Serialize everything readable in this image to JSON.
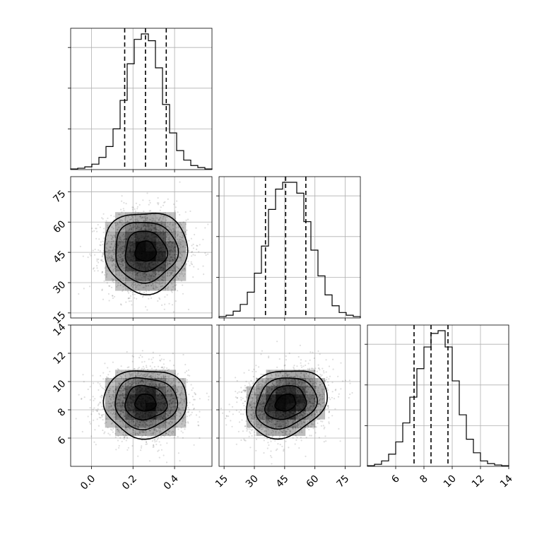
{
  "chart_data": {
    "type": "corner",
    "params": [
      {
        "range": [
          -0.1,
          0.58
        ],
        "ticks": [
          0.0,
          0.2,
          0.4
        ],
        "tick_labels": [
          "0.0",
          "0.2",
          "0.4"
        ],
        "quantiles": [
          0.16,
          0.26,
          0.36
        ],
        "hist": [
          0.5,
          1,
          2,
          4,
          9,
          17,
          30,
          51,
          78,
          96,
          100,
          95,
          75,
          48,
          27,
          14,
          7,
          3,
          1.5,
          0.5
        ]
      },
      {
        "range": [
          12.5,
          82.5
        ],
        "ticks": [
          15,
          30,
          45,
          60,
          75
        ],
        "tick_labels": [
          "15",
          "30",
          "45",
          "60",
          "75"
        ],
        "quantiles": [
          35.5,
          45.5,
          55.5
        ],
        "hist": [
          1,
          2,
          5,
          10,
          19,
          33,
          53,
          80,
          95,
          100,
          100,
          92,
          71,
          50,
          31,
          17,
          9,
          4,
          2,
          1
        ]
      },
      {
        "range": [
          4.0,
          14.0
        ],
        "ticks": [
          6,
          8,
          10,
          12,
          14
        ],
        "tick_labels": [
          "6",
          "8",
          "10",
          "12",
          "14"
        ],
        "quantiles": [
          7.3,
          8.5,
          9.7
        ],
        "hist": [
          0.5,
          1.5,
          4,
          9,
          18,
          32,
          51,
          72,
          88,
          98,
          100,
          88,
          63,
          38,
          20,
          10,
          4,
          2,
          1,
          0.5
        ]
      }
    ],
    "correlations": [
      [
        0,
        1,
        0.0
      ],
      [
        0,
        2,
        0.0
      ],
      [
        1,
        2,
        0.2
      ]
    ],
    "contour_levels_sigma": [
      0.5,
      1.0,
      1.5,
      2.0
    ],
    "scatter_color": "#000000",
    "grid": true
  }
}
